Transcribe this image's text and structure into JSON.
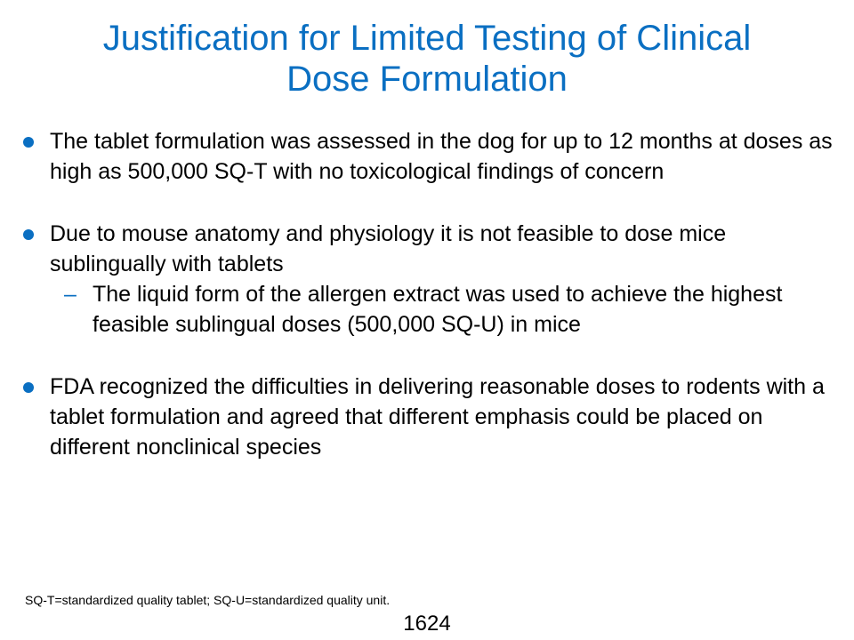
{
  "slide": {
    "title_line1": "Justification for Limited Testing of Clinical",
    "title_line2": "Dose Formulation",
    "bullets": [
      {
        "text": "The tablet formulation was assessed in the dog for up to 12 months at doses as high as 500,000 SQ-T with no toxicological findings of concern"
      },
      {
        "text": "Due to mouse anatomy and physiology it is not feasible to dose mice sublingually with tablets",
        "sub": "The liquid form of the allergen extract was used to achieve the highest feasible sublingual doses (500,000 SQ-U) in mice"
      },
      {
        "text": "FDA recognized the difficulties in delivering reasonable doses to rodents with a tablet formulation and agreed that different emphasis could be placed on different nonclinical species"
      }
    ],
    "footnote": "SQ-T=standardized quality tablet; SQ-U=standardized quality unit.",
    "page_number": "1624"
  },
  "colors": {
    "accent": "#0a6fc2",
    "text": "#000000",
    "background": "#ffffff"
  },
  "icons": {
    "bullet": "filled-circle-bullet-icon",
    "sub_bullet": "dash-bullet-icon"
  }
}
